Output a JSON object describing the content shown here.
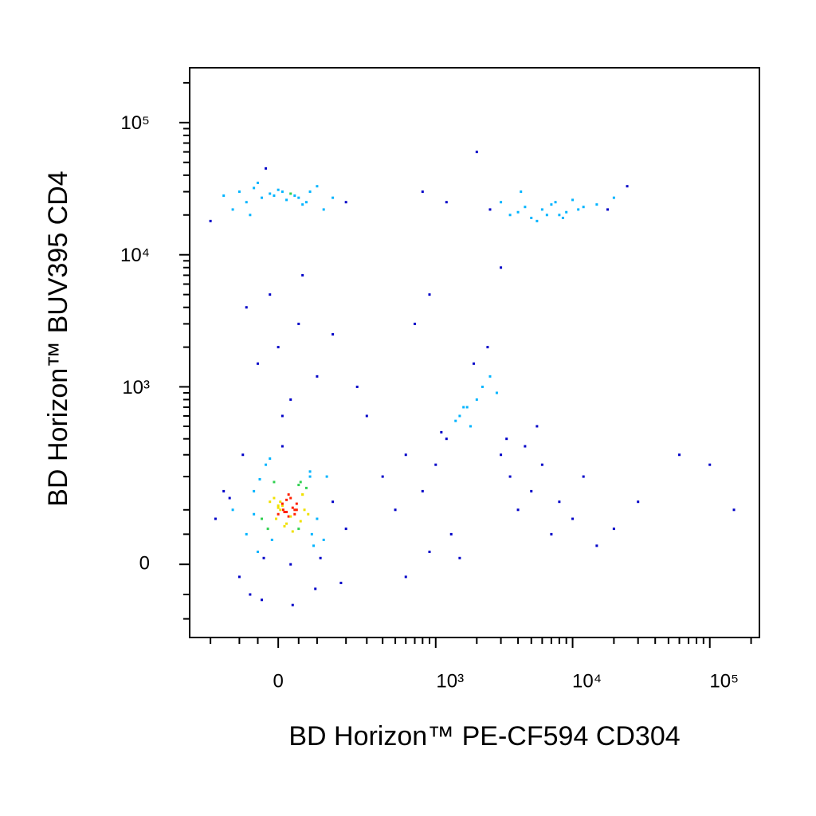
{
  "chart_data": {
    "type": "scatter",
    "xlabel": "BD Horizon™ PE-CF594 CD304",
    "ylabel": "BD Horizon™ BUV395 CD4",
    "xscale": "biexponential",
    "yscale": "biexponential",
    "xlim": [
      -300,
      230000
    ],
    "ylim": [
      -150,
      260000
    ],
    "xticks": [
      0,
      {
        "value": 1000,
        "label": "10³"
      },
      {
        "value": 10000,
        "label": "10⁴"
      },
      {
        "value": 100000,
        "label": "10⁵"
      }
    ],
    "yticks": [
      0,
      {
        "value": 1000,
        "label": "10³"
      },
      {
        "value": 10000,
        "label": "10⁴"
      },
      {
        "value": 100000,
        "label": "10⁵"
      }
    ],
    "xminorticks": [
      -200,
      -100,
      -50,
      50,
      100,
      200,
      300,
      400,
      500,
      600,
      700,
      800,
      900,
      2000,
      3000,
      4000,
      5000,
      6000,
      7000,
      8000,
      9000,
      20000,
      30000,
      40000,
      50000,
      60000,
      70000,
      80000,
      90000,
      200000
    ],
    "yminorticks": [
      -100,
      -50,
      50,
      100,
      200,
      300,
      400,
      500,
      600,
      700,
      800,
      900,
      2000,
      3000,
      4000,
      5000,
      6000,
      7000,
      8000,
      9000,
      20000,
      30000,
      40000,
      50000,
      60000,
      70000,
      80000,
      90000,
      200000
    ],
    "colormap": [
      "#0000c8",
      "#00b4ff",
      "#30d050",
      "#f0e000",
      "#ff2000"
    ],
    "x": [
      -120,
      -80,
      -60,
      -40,
      -20,
      0,
      10,
      20,
      30,
      40,
      50,
      60,
      80,
      100,
      120,
      150,
      -100,
      -50,
      -30,
      -10,
      5,
      15,
      25,
      35,
      45,
      55,
      70,
      90,
      110,
      -150,
      -90,
      -70,
      -25,
      0,
      20,
      40,
      60,
      80,
      -40,
      10,
      30,
      50,
      -60,
      -5,
      15,
      35,
      65,
      130,
      180,
      -180,
      -130,
      200,
      -20,
      25,
      45,
      5,
      -15,
      35,
      55,
      75,
      0,
      20,
      -35,
      10,
      30,
      -45,
      85,
      95,
      -10,
      12,
      -150,
      -100,
      -80,
      -60,
      -40,
      -20,
      0,
      20,
      40,
      60,
      80,
      100,
      150,
      -120,
      -50,
      -10,
      30,
      70,
      -70,
      10,
      50,
      -30,
      120,
      200,
      -200,
      2500,
      3000,
      3500,
      4000,
      4500,
      5000,
      6000,
      7000,
      8000,
      9000,
      10000,
      12000,
      15000,
      18000,
      5500,
      6500,
      7500,
      4200,
      8500,
      11000,
      2000,
      1200,
      800,
      20000,
      25000,
      400,
      500,
      600,
      800,
      1000,
      1200,
      1500,
      1800,
      2000,
      2500,
      3000,
      3500,
      4000,
      5000,
      6000,
      7000,
      8000,
      10000,
      12000,
      15000,
      20000,
      600,
      900,
      1300,
      1700,
      2200,
      2800,
      3300,
      4500,
      5500,
      1100,
      1400,
      1600,
      1900,
      2400,
      700,
      300,
      250,
      900,
      3000,
      60000,
      100000,
      150000,
      30000,
      1500,
      -50,
      0,
      50,
      100,
      -20,
      30,
      150,
      -80,
      60,
      10
    ],
    "values": [
      100,
      50,
      150,
      80,
      120,
      90,
      110,
      70,
      130,
      100,
      60,
      140,
      200,
      80,
      40,
      120,
      -20,
      20,
      250,
      180,
      100,
      95,
      85,
      105,
      115,
      75,
      160,
      30,
      10,
      150,
      300,
      -50,
      60,
      110,
      125,
      90,
      140,
      220,
      -60,
      350,
      0,
      170,
      90,
      80,
      65,
      55,
      100,
      200,
      -30,
      80,
      130,
      60,
      280,
      140,
      100,
      120,
      40,
      -70,
      180,
      90,
      105,
      95,
      10,
      115,
      85,
      190,
      50,
      -40,
      130,
      100,
      28000,
      30000,
      25000,
      32000,
      27000,
      29000,
      31000,
      26000,
      28000,
      24000,
      30000,
      33000,
      27000,
      22000,
      35000,
      28000,
      29000,
      25000,
      20000,
      30000,
      27000,
      45000,
      22000,
      25000,
      18000,
      22000,
      25000,
      20000,
      21000,
      23000,
      19000,
      22000,
      24000,
      20000,
      21000,
      26000,
      23000,
      24000,
      22000,
      18000,
      20000,
      25000,
      30000,
      19000,
      22000,
      60000,
      25000,
      30000,
      27000,
      33000,
      200,
      100,
      300,
      150,
      250,
      400,
      600,
      500,
      800,
      1200,
      300,
      200,
      100,
      150,
      250,
      50,
      120,
      80,
      200,
      30,
      60,
      -20,
      20,
      50,
      700,
      1000,
      900,
      400,
      350,
      500,
      450,
      550,
      700,
      1500,
      2000,
      3000,
      600,
      1000,
      5000,
      8000,
      300,
      250,
      100,
      120,
      10,
      1500,
      2000,
      3000,
      1200,
      5000,
      800,
      2500,
      4000,
      7000,
      600
    ]
  }
}
